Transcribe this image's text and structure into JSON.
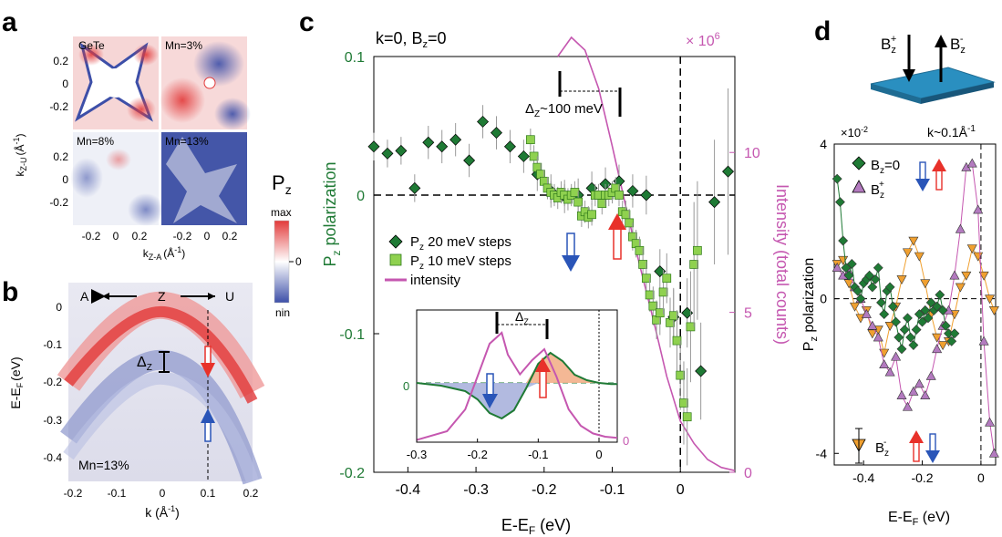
{
  "panel_letters": {
    "a": "a",
    "b": "b",
    "c": "c",
    "d": "d"
  },
  "colors": {
    "green_dark": "#1f7a35",
    "green_light": "#8fd14f",
    "magenta": "#c557b0",
    "orange": "#f0a030",
    "purple": "#b37abf",
    "red": "#e8312a",
    "blue": "#2a55b8",
    "map_red": "#e23a3a",
    "map_blue": "#3d4fa8"
  },
  "panel_a": {
    "maps": [
      "GeTe",
      "Mn=3%",
      "Mn=8%",
      "Mn=13%"
    ],
    "ylabel_main": "k",
    "ylabel_sub": "Z-U",
    "ylabel_unit": "(Å",
    "ylabel_exp": "-1",
    "ylabel_close": ")",
    "xlabel_main": "k",
    "xlabel_sub": "Z-A",
    "xlabel_unit": "(Å",
    "xlabel_exp": "-1",
    "xlabel_close": ")",
    "yticks": [
      "0.2",
      "0",
      "-0.2",
      "0.2",
      "0",
      "-0.2"
    ],
    "xticks": [
      "-0.2",
      "0",
      "0.2",
      "-0.2",
      "0",
      "0.2"
    ],
    "colorbar": {
      "title_main": "P",
      "title_sub": "z",
      "max": "max",
      "zero": "0",
      "min": "nin"
    }
  },
  "panel_b": {
    "direction_left": "A",
    "center": "Z",
    "direction_right": "U",
    "gap_label_main": "Δ",
    "gap_label_sub": "Z",
    "ylabel": "E-E",
    "ylabel_sub": "F",
    "ylabel_unit": "(eV)",
    "xlabel": "k (Å",
    "xlabel_exp": "-1",
    "xlabel_close": ")",
    "sample": "Mn=13%",
    "yticks": [
      "0",
      "-0.1",
      "-0.2",
      "-0.3",
      "-0.4"
    ],
    "xticks": [
      "-0.2",
      "-0.1",
      "0",
      "0.1",
      "0.2"
    ]
  },
  "chart_data": [
    {
      "id": "panel_c",
      "type": "scatter",
      "title": "k=0, B",
      "title_sub": "z",
      "title_end": "=0",
      "xlabel": "E-E",
      "xlabel_sub": "F",
      "xlabel_unit": " (eV)",
      "ylabel_left_main": "P",
      "ylabel_left_sub": "z",
      "ylabel_left_rest": "  polarization",
      "ylabel_right": "Intensity  (total counts)",
      "right_multiplier": "× 10",
      "right_multiplier_exp": "6",
      "xlim": [
        -0.45,
        0.08
      ],
      "ylim": [
        -0.2,
        0.1
      ],
      "ylim_right": [
        0,
        13
      ],
      "xticks": [
        "-0.4",
        "-0.3",
        "-0.2",
        "-0.1",
        "0"
      ],
      "xtick_values": [
        -0.4,
        -0.3,
        -0.2,
        -0.1,
        0
      ],
      "yticks_left": [
        "0.1",
        "0",
        "-0.1",
        "-0.2"
      ],
      "ytick_left_values": [
        0.1,
        0,
        -0.1,
        -0.2
      ],
      "yticks_right": [
        "10",
        "5",
        "0"
      ],
      "ytick_right_values": [
        10,
        5,
        0
      ],
      "gap_label": "Δ",
      "gap_label_sub": "Z",
      "gap_label_end": "~100 meV",
      "legend": [
        {
          "main": "P",
          "sub": "z",
          "rest": "  20 meV steps"
        },
        {
          "main": "P",
          "sub": "z",
          "rest": "  10 meV steps"
        },
        {
          "main": "intensity",
          "sub": "",
          "rest": ""
        }
      ],
      "series": [
        {
          "name": "Pz 20 meV steps",
          "x": [
            -0.45,
            -0.43,
            -0.41,
            -0.39,
            -0.37,
            -0.35,
            -0.33,
            -0.31,
            -0.29,
            -0.27,
            -0.25,
            -0.23,
            -0.21,
            -0.19,
            -0.17,
            -0.15,
            -0.13,
            -0.11,
            -0.09,
            -0.07,
            -0.05,
            -0.03,
            -0.01,
            0.01,
            0.03,
            0.05,
            0.07
          ],
          "y": [
            0.035,
            0.03,
            0.032,
            0.005,
            0.038,
            0.035,
            0.04,
            0.025,
            0.053,
            0.045,
            0.035,
            0.028,
            0.015,
            0.003,
            -0.001,
            0.0,
            0.005,
            0.008,
            0.01,
            0.003,
            0.0,
            -0.055,
            -0.088,
            -0.085,
            -0.127,
            -0.005,
            0.017
          ],
          "err": [
            0.01,
            0.01,
            0.01,
            0.01,
            0.012,
            0.012,
            0.012,
            0.012,
            0.012,
            0.012,
            0.012,
            0.012,
            0.012,
            0.012,
            0.012,
            0.012,
            0.012,
            0.012,
            0.012,
            0.012,
            0.014,
            0.016,
            0.02,
            0.025,
            0.035,
            0.045,
            0.06
          ]
        },
        {
          "name": "Pz 10 meV steps",
          "x": [
            -0.22,
            -0.215,
            -0.21,
            -0.205,
            -0.2,
            -0.195,
            -0.19,
            -0.185,
            -0.18,
            -0.175,
            -0.17,
            -0.165,
            -0.16,
            -0.155,
            -0.15,
            -0.145,
            -0.14,
            -0.135,
            -0.13,
            -0.125,
            -0.12,
            -0.115,
            -0.11,
            -0.105,
            -0.1,
            -0.095,
            -0.09,
            -0.085,
            -0.08,
            -0.075,
            -0.07,
            -0.065,
            -0.06,
            -0.055,
            -0.05,
            -0.045,
            -0.04,
            -0.035,
            -0.03,
            -0.025,
            -0.02,
            -0.015,
            -0.01,
            -0.005,
            0.0,
            0.005,
            0.01,
            0.015,
            0.02,
            0.025
          ],
          "y": [
            0.04,
            0.028,
            0.02,
            0.015,
            0.01,
            0.005,
            0.002,
            0.0,
            -0.002,
            0.002,
            0.0,
            -0.003,
            0.0,
            0.002,
            -0.005,
            -0.015,
            -0.012,
            -0.016,
            -0.014,
            0.0,
            0.0,
            -0.006,
            0.0,
            0.0,
            0.002,
            0.005,
            0.0,
            -0.012,
            -0.014,
            -0.02,
            -0.03,
            -0.035,
            -0.04,
            -0.05,
            -0.06,
            -0.072,
            -0.08,
            -0.09,
            -0.085,
            -0.07,
            -0.06,
            -0.092,
            -0.087,
            -0.105,
            -0.13,
            -0.15,
            -0.16,
            -0.095,
            -0.05,
            -0.04
          ],
          "err": [
            0.008,
            0.008,
            0.008,
            0.008,
            0.008,
            0.008,
            0.008,
            0.008,
            0.008,
            0.008,
            0.008,
            0.008,
            0.008,
            0.008,
            0.008,
            0.008,
            0.008,
            0.008,
            0.008,
            0.008,
            0.008,
            0.008,
            0.008,
            0.008,
            0.008,
            0.008,
            0.008,
            0.008,
            0.01,
            0.01,
            0.01,
            0.01,
            0.01,
            0.012,
            0.012,
            0.012,
            0.014,
            0.014,
            0.016,
            0.016,
            0.018,
            0.018,
            0.02,
            0.022,
            0.025,
            0.03,
            0.035,
            0.04,
            0.045,
            0.05
          ]
        },
        {
          "name": "intensity",
          "axis": "right",
          "x": [
            -0.18,
            -0.16,
            -0.14,
            -0.12,
            -0.1,
            -0.08,
            -0.06,
            -0.04,
            -0.02,
            0.0,
            0.02,
            0.04,
            0.06,
            0.08
          ],
          "y": [
            13.0,
            13.6,
            13.2,
            12.0,
            10.2,
            8.3,
            6.5,
            4.8,
            3.0,
            1.6,
            0.9,
            0.4,
            0.15,
            0.05
          ]
        }
      ],
      "inset": {
        "xticks": [
          "-0.3",
          "-0.2",
          "-0.1",
          "0"
        ],
        "xtick_values": [
          -0.3,
          -0.2,
          -0.1,
          0
        ],
        "ytick_left": "0",
        "ytick_right": "0",
        "gap_label": "Δ",
        "gap_label_sub": "Z",
        "xlim": [
          -0.3,
          0.03
        ],
        "intensity_x": [
          -0.3,
          -0.25,
          -0.22,
          -0.2,
          -0.18,
          -0.16,
          -0.15,
          -0.13,
          -0.11,
          -0.09,
          -0.07,
          -0.05,
          -0.03,
          -0.01,
          0.01,
          0.03
        ],
        "intensity_y": [
          0.02,
          0.1,
          0.3,
          0.6,
          0.9,
          1.0,
          0.8,
          0.62,
          0.75,
          0.85,
          0.6,
          0.3,
          0.15,
          0.08,
          0.05,
          0.04
        ],
        "polarization_x": [
          -0.3,
          -0.26,
          -0.22,
          -0.2,
          -0.18,
          -0.16,
          -0.14,
          -0.12,
          -0.1,
          -0.08,
          -0.06,
          -0.04,
          -0.02,
          0.0,
          0.02,
          0.03
        ],
        "polarization_y": [
          0.0,
          -0.05,
          -0.15,
          -0.3,
          -0.55,
          -0.65,
          -0.5,
          -0.1,
          0.35,
          0.55,
          0.4,
          0.15,
          0.05,
          0.0,
          -0.02,
          -0.02
        ]
      }
    },
    {
      "id": "panel_d",
      "type": "line",
      "xlabel": "E-E",
      "xlabel_sub": "F",
      "xlabel_unit": " (eV)",
      "ylabel_main": "P",
      "ylabel_sub": "z",
      "ylabel_rest": " polarization",
      "multiplier": "×10",
      "multiplier_exp": "-2",
      "k_label": "k~0.1Å",
      "k_label_exp": "-1",
      "xlim": [
        -0.5,
        0.05
      ],
      "ylim": [
        -4.3,
        4
      ],
      "xticks": [
        "-0.4",
        "-0.2",
        "0"
      ],
      "xtick_values": [
        -0.4,
        -0.2,
        0
      ],
      "yticks": [
        "4",
        "0",
        "-4"
      ],
      "ytick_values": [
        4,
        0,
        -4
      ],
      "field_labels": {
        "plus_main": "B",
        "plus_sub": "z",
        "plus_sup": "+",
        "minus_main": "B",
        "minus_sub": "z",
        "minus_sup": "-"
      },
      "legend": [
        {
          "main": "B",
          "sub": "z",
          "sup": "",
          "rest": "=0"
        },
        {
          "main": "B",
          "sub": "z",
          "sup": "+",
          "rest": ""
        },
        {
          "main": "B",
          "sub": "z",
          "sup": "-",
          "rest": ""
        }
      ],
      "series": [
        {
          "name": "Bz=0",
          "x": [
            -0.49,
            -0.48,
            -0.47,
            -0.46,
            -0.45,
            -0.44,
            -0.43,
            -0.42,
            -0.41,
            -0.4,
            -0.39,
            -0.38,
            -0.37,
            -0.36,
            -0.35,
            -0.34,
            -0.33,
            -0.32,
            -0.31,
            -0.3,
            -0.29,
            -0.28,
            -0.27,
            -0.26,
            -0.25,
            -0.24,
            -0.23,
            -0.22,
            -0.21,
            -0.2,
            -0.19,
            -0.18,
            -0.17,
            -0.16,
            -0.15,
            -0.14,
            -0.13,
            -0.12,
            -0.11,
            -0.1,
            -0.09
          ],
          "y": [
            3.1,
            2.5,
            1.5,
            0.8,
            0.6,
            0.9,
            0.3,
            0.2,
            0.0,
            0.4,
            0.5,
            0.6,
            0.3,
            0.5,
            0.8,
            -0.1,
            -0.4,
            0.2,
            0.3,
            -0.2,
            -0.6,
            -1.0,
            -1.3,
            -0.8,
            -0.5,
            -1.0,
            -1.2,
            -0.8,
            -0.4,
            -0.6,
            -0.3,
            -0.5,
            -0.1,
            -0.3,
            -0.2,
            0.1,
            -0.3,
            -0.7,
            -0.9,
            -1.1,
            -0.9
          ]
        },
        {
          "name": "Bz+",
          "x": [
            -0.49,
            -0.47,
            -0.45,
            -0.43,
            -0.41,
            -0.39,
            -0.37,
            -0.35,
            -0.33,
            -0.31,
            -0.29,
            -0.27,
            -0.25,
            -0.23,
            -0.21,
            -0.19,
            -0.17,
            -0.15,
            -0.13,
            -0.11,
            -0.09,
            -0.07,
            -0.05,
            -0.03,
            -0.01,
            0.01,
            0.03,
            0.045
          ],
          "y": [
            0.8,
            0.6,
            0.7,
            0.3,
            0.0,
            -0.4,
            -0.7,
            -1.0,
            -1.7,
            -1.9,
            -1.5,
            -2.5,
            -2.8,
            -2.4,
            -2.2,
            -2.5,
            -2.0,
            -1.3,
            -0.7,
            -0.3,
            0.6,
            1.8,
            3.4,
            3.5,
            2.3,
            -1.1,
            -3.2,
            -4.0
          ]
        },
        {
          "name": "Bz-",
          "x": [
            -0.49,
            -0.47,
            -0.45,
            -0.43,
            -0.41,
            -0.39,
            -0.37,
            -0.35,
            -0.33,
            -0.31,
            -0.29,
            -0.27,
            -0.25,
            -0.23,
            -0.21,
            -0.19,
            -0.17,
            -0.15,
            -0.13,
            -0.11,
            -0.09,
            -0.07,
            -0.05,
            -0.03,
            -0.01,
            0.01,
            0.03,
            0.045
          ],
          "y": [
            0.9,
            1.0,
            0.4,
            -0.2,
            -0.5,
            -0.3,
            -0.9,
            -0.8,
            -1.4,
            -0.7,
            -0.2,
            0.5,
            1.2,
            1.5,
            1.1,
            0.4,
            -0.4,
            -1.0,
            -1.2,
            -1.1,
            -0.4,
            0.3,
            0.6,
            1.3,
            1.1,
            0.6,
            0.0,
            -0.3
          ]
        }
      ]
    }
  ]
}
